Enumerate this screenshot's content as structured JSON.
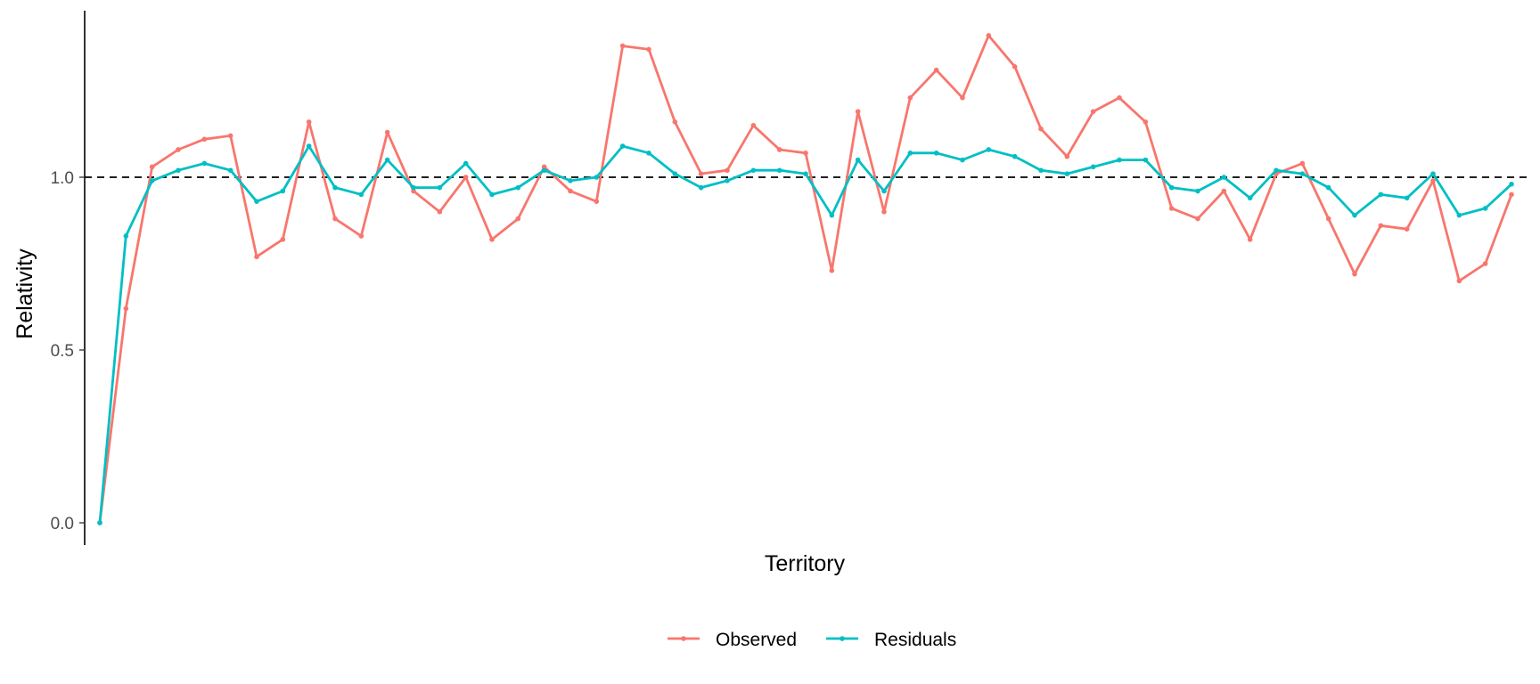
{
  "chart_data": {
    "type": "line",
    "title": "",
    "xlabel": "Territory",
    "ylabel": "Relativity",
    "yticks": [
      "0.0",
      "0.5",
      "1.0"
    ],
    "ylim": [
      -0.07,
      1.47
    ],
    "reference_line": {
      "y": 1.0,
      "style": "dashed",
      "color": "#000000"
    },
    "legend": {
      "position": "bottom"
    },
    "series": [
      {
        "name": "Observed",
        "color": "#F8766D",
        "values": [
          0.0,
          0.62,
          1.03,
          1.08,
          1.11,
          1.12,
          0.77,
          0.82,
          1.16,
          0.88,
          0.83,
          1.13,
          0.96,
          0.9,
          1.0,
          0.82,
          0.88,
          1.03,
          0.96,
          0.93,
          1.38,
          1.37,
          1.16,
          1.01,
          1.02,
          1.15,
          1.08,
          1.07,
          0.73,
          1.19,
          0.9,
          1.23,
          1.31,
          1.23,
          1.41,
          1.32,
          1.14,
          1.06,
          1.19,
          1.23,
          1.16,
          0.91,
          0.88,
          0.96,
          0.82,
          1.01,
          1.04,
          0.88,
          0.72,
          0.86,
          0.85,
          0.99,
          0.7,
          0.75,
          0.95
        ]
      },
      {
        "name": "Residuals",
        "color": "#00BFC4",
        "values": [
          0.0,
          0.83,
          0.99,
          1.02,
          1.04,
          1.02,
          0.93,
          0.96,
          1.09,
          0.97,
          0.95,
          1.05,
          0.97,
          0.97,
          1.04,
          0.95,
          0.97,
          1.02,
          0.99,
          1.0,
          1.09,
          1.07,
          1.01,
          0.97,
          0.99,
          1.02,
          1.02,
          1.01,
          0.89,
          1.05,
          0.96,
          1.07,
          1.07,
          1.05,
          1.08,
          1.06,
          1.02,
          1.01,
          1.03,
          1.05,
          1.05,
          0.97,
          0.96,
          1.0,
          0.94,
          1.02,
          1.01,
          0.97,
          0.89,
          0.95,
          0.94,
          1.01,
          0.89,
          0.91,
          0.98
        ]
      }
    ]
  }
}
